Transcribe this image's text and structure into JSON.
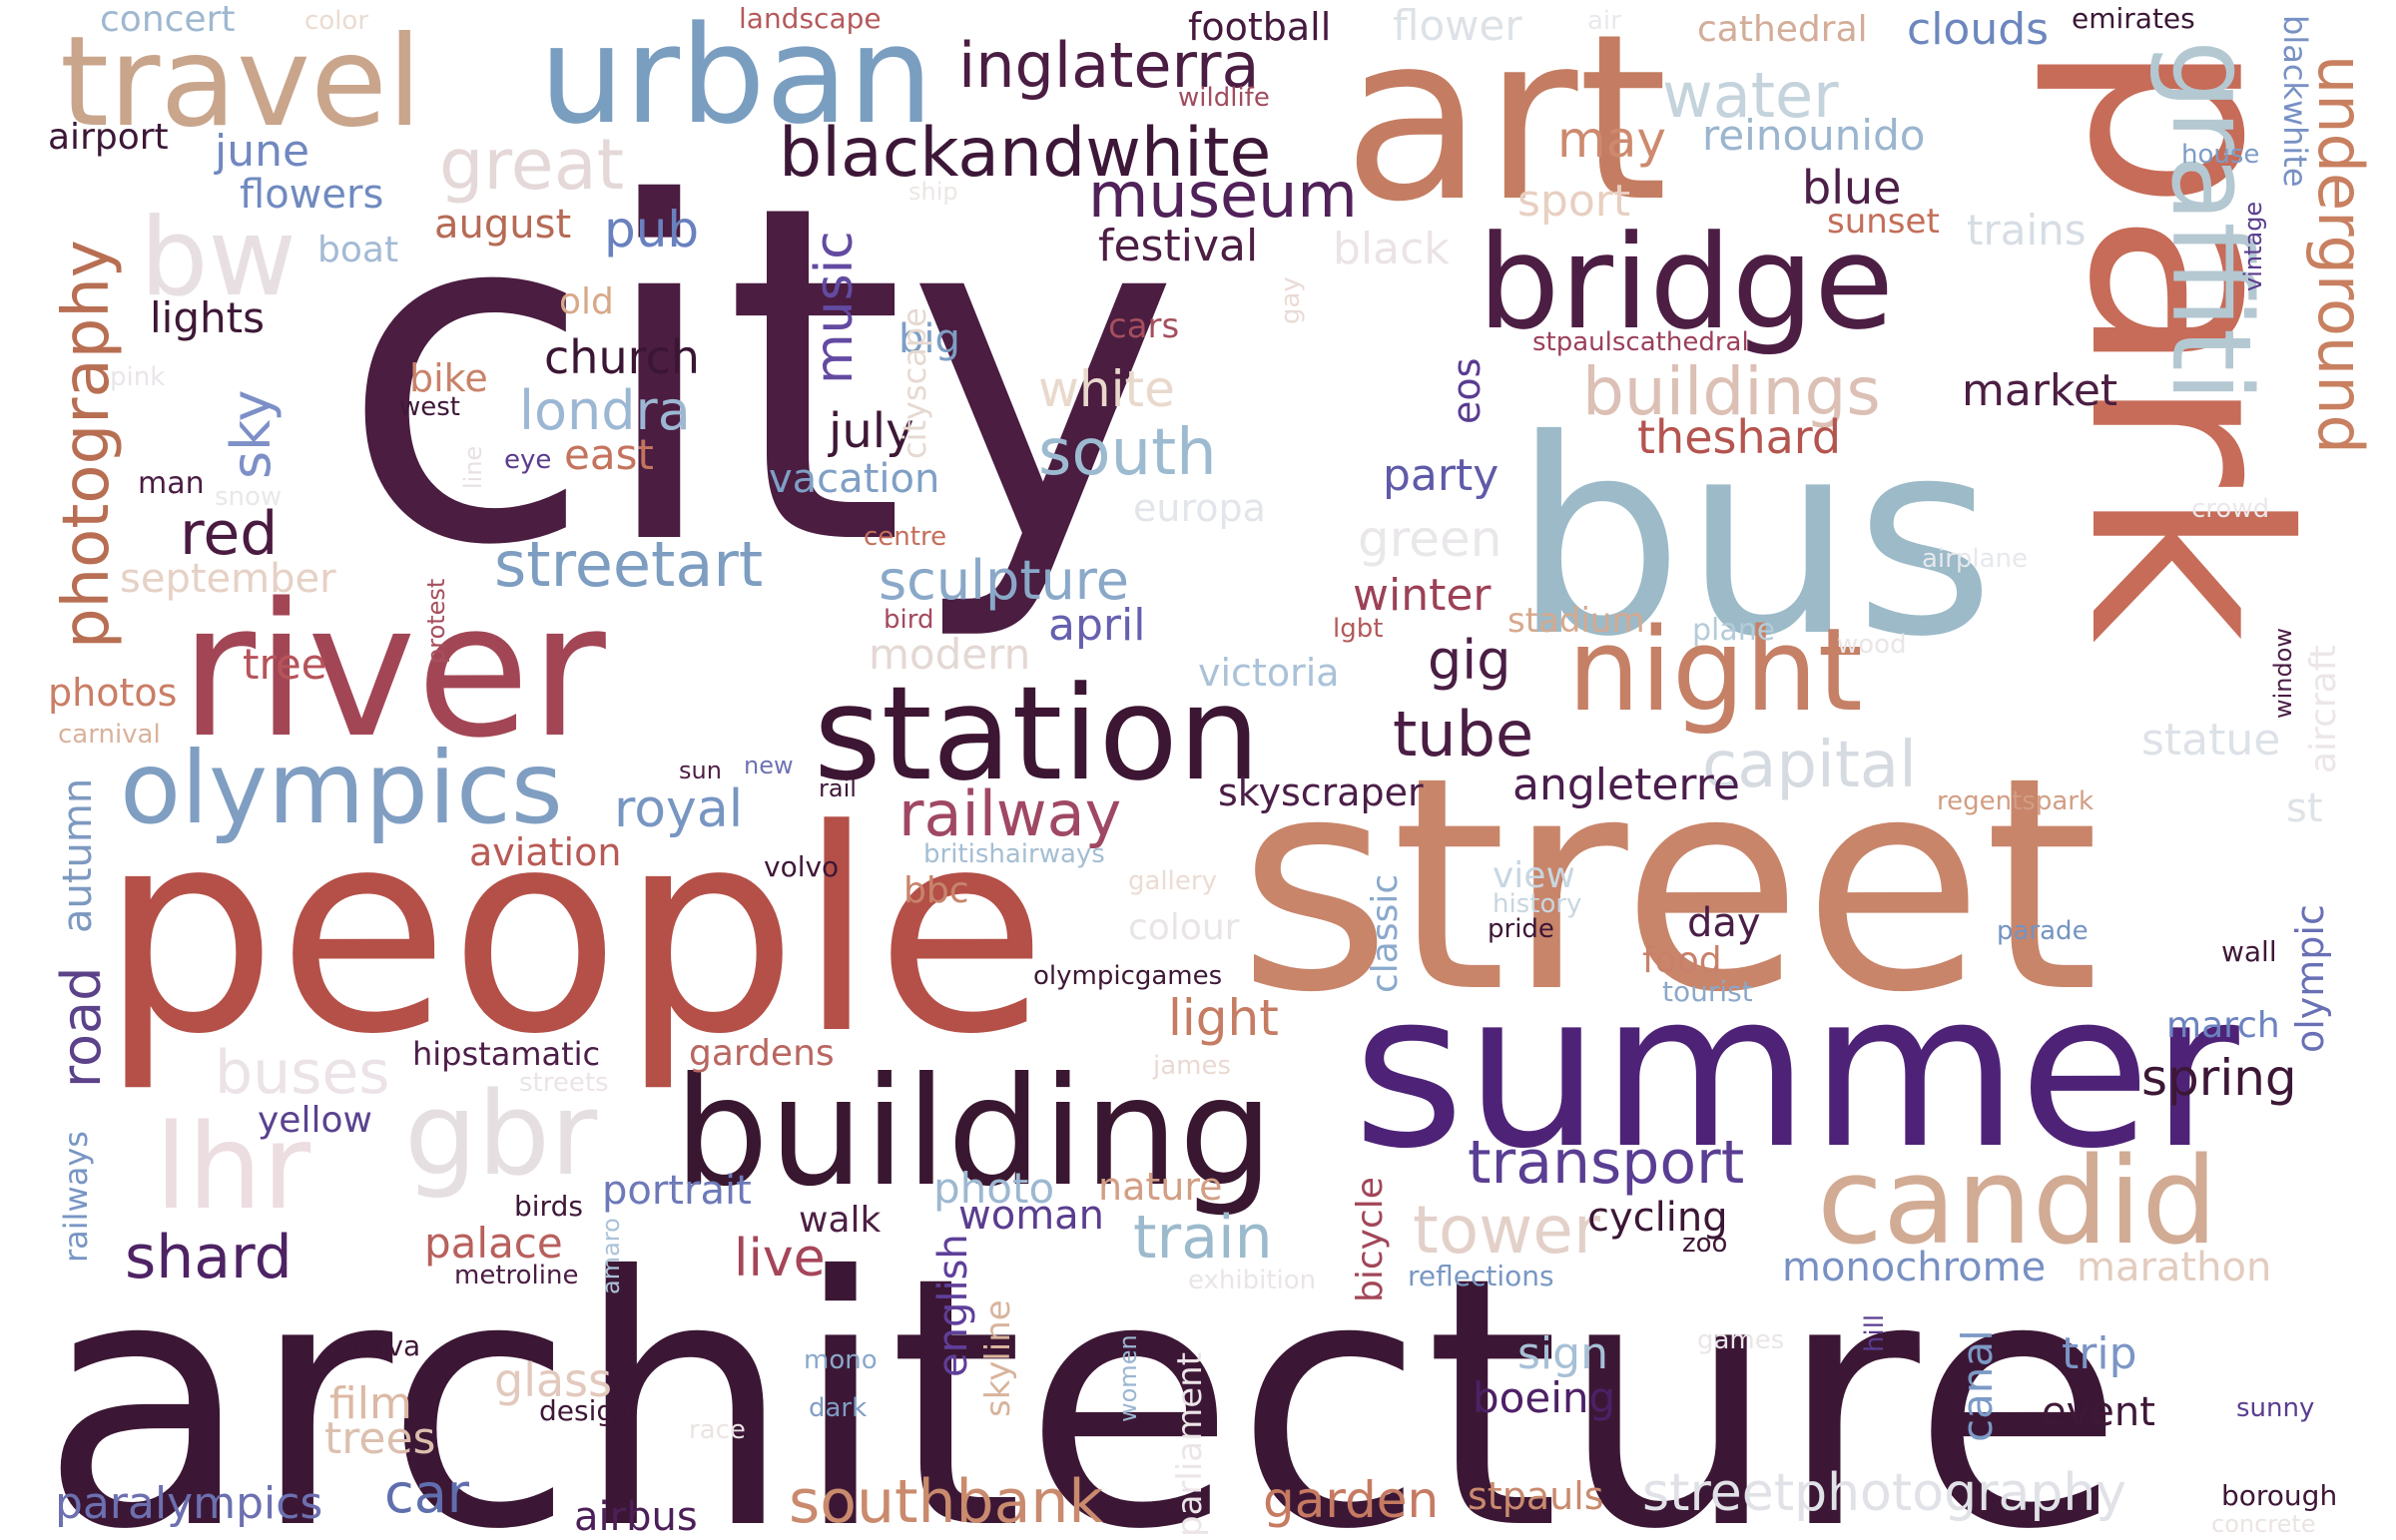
{
  "words": [
    {
      "text": "city",
      "color": "#4a1d41"
    },
    {
      "text": "architecture",
      "color": "#3c1735"
    },
    {
      "text": "people",
      "color": "#b45048"
    },
    {
      "text": "street",
      "color": "#c8856a"
    },
    {
      "text": "art",
      "color": "#c47d62"
    },
    {
      "text": "park",
      "color": "#c66c58"
    },
    {
      "text": "bus",
      "color": "#9cbac8"
    },
    {
      "text": "summer",
      "color": "#4e2377"
    },
    {
      "text": "river",
      "color": "#a24656"
    },
    {
      "text": "building",
      "color": "#3a1730"
    },
    {
      "text": "urban",
      "color": "#7a9ec0"
    },
    {
      "text": "travel",
      "color": "#c9a58c"
    },
    {
      "text": "station",
      "color": "#3d1633"
    },
    {
      "text": "bridge",
      "color": "#4d1e44"
    },
    {
      "text": "night",
      "color": "#c58066"
    },
    {
      "text": "candid",
      "color": "#d2ab94"
    },
    {
      "text": "graffiti",
      "color": "#b4c8d2"
    },
    {
      "text": "olympics",
      "color": "#7f9ec2"
    },
    {
      "text": "gbr",
      "color": "#e6dfe2"
    },
    {
      "text": "lhr",
      "color": "#ecdde1"
    },
    {
      "text": "bw",
      "color": "#e8dfe3"
    },
    {
      "text": "underground",
      "color": "#c88060"
    },
    {
      "text": "photography",
      "color": "#b86e52"
    },
    {
      "text": "blackandwhite",
      "color": "#3d1738"
    },
    {
      "text": "inglaterra",
      "color": "#4b1d43"
    },
    {
      "text": "museum",
      "color": "#51215a"
    },
    {
      "text": "great",
      "color": "#e5d8d8"
    },
    {
      "text": "water",
      "color": "#c4d3dc"
    },
    {
      "text": "buildings",
      "color": "#dcc0b5"
    },
    {
      "text": "railway",
      "color": "#a04863"
    },
    {
      "text": "streetart",
      "color": "#7d9dc1"
    },
    {
      "text": "south",
      "color": "#9cbad0"
    },
    {
      "text": "sculpture",
      "color": "#8aa8c8"
    },
    {
      "text": "tube",
      "color": "#4a1d43"
    },
    {
      "text": "capital",
      "color": "#d6dbe2"
    },
    {
      "text": "tower",
      "color": "#e3d1c9"
    },
    {
      "text": "transport",
      "color": "#5a3e93"
    },
    {
      "text": "train",
      "color": "#9cbacd"
    },
    {
      "text": "shard",
      "color": "#4e2364"
    },
    {
      "text": "southbank",
      "color": "#c98a6d"
    },
    {
      "text": "streetphotography",
      "color": "#e0e2e7"
    },
    {
      "text": "car",
      "color": "#5f6fae"
    },
    {
      "text": "paralympics",
      "color": "#6c70b1"
    },
    {
      "text": "buses",
      "color": "#ebe3e8"
    },
    {
      "text": "road",
      "color": "#5b4289"
    },
    {
      "text": "red",
      "color": "#4a1b40"
    },
    {
      "text": "sky",
      "color": "#7c8fc7"
    },
    {
      "text": "londra",
      "color": "#9cb7d3"
    },
    {
      "text": "music",
      "color": "#634aa1"
    },
    {
      "text": "church",
      "color": "#3b1634"
    },
    {
      "text": "royal",
      "color": "#7796c2"
    },
    {
      "text": "angleterre",
      "color": "#4a1e4d"
    },
    {
      "text": "theshard",
      "color": "#b4544f"
    },
    {
      "text": "market",
      "color": "#4b1e42"
    },
    {
      "text": "statue",
      "color": "#dde2e8"
    },
    {
      "text": "skyscraper",
      "color": "#4a1e47"
    },
    {
      "text": "gig",
      "color": "#4a1e44"
    },
    {
      "text": "winter",
      "color": "#9c4156"
    },
    {
      "text": "green",
      "color": "#eae7ea"
    },
    {
      "text": "party",
      "color": "#5f5aa8"
    },
    {
      "text": "july",
      "color": "#3e1836"
    },
    {
      "text": "white",
      "color": "#e9d9cc"
    },
    {
      "text": "vacation",
      "color": "#7f9fc5"
    },
    {
      "text": "modern",
      "color": "#e4d8d4"
    },
    {
      "text": "april",
      "color": "#6660b0"
    },
    {
      "text": "victoria",
      "color": "#aac2d8"
    },
    {
      "text": "festival",
      "color": "#4d1d43"
    },
    {
      "text": "blue",
      "color": "#4c1f48"
    },
    {
      "text": "may",
      "color": "#cd8a6e"
    },
    {
      "text": "reinounido",
      "color": "#9bb5cf"
    },
    {
      "text": "sport",
      "color": "#e8cfc1"
    },
    {
      "text": "sunset",
      "color": "#c36e59"
    },
    {
      "text": "trains",
      "color": "#d6dde4"
    },
    {
      "text": "black",
      "color": "#ebe3e6"
    },
    {
      "text": "clouds",
      "color": "#6c87bd"
    },
    {
      "text": "cathedral",
      "color": "#d3ad98"
    },
    {
      "text": "flower",
      "color": "#dde2e7"
    },
    {
      "text": "football",
      "color": "#45193e"
    },
    {
      "text": "emirates",
      "color": "#3c1736"
    },
    {
      "text": "air",
      "color": "#e8e9ec"
    },
    {
      "text": "june",
      "color": "#7088c0"
    },
    {
      "text": "flowers",
      "color": "#6f8abf"
    },
    {
      "text": "august",
      "color": "#b66a55"
    },
    {
      "text": "pub",
      "color": "#6981bf"
    },
    {
      "text": "boat",
      "color": "#a3bad4"
    },
    {
      "text": "lights",
      "color": "#3e1836"
    },
    {
      "text": "old",
      "color": "#d8a889"
    },
    {
      "text": "big",
      "color": "#7e9ec4"
    },
    {
      "text": "cityscape",
      "color": "#e6d9d1"
    },
    {
      "text": "cars",
      "color": "#a44f5d"
    },
    {
      "text": "stpaulscathedral",
      "color": "#9b3f5b"
    },
    {
      "text": "eos",
      "color": "#5a3c90"
    },
    {
      "text": "europa",
      "color": "#e2e5ea"
    },
    {
      "text": "stadium",
      "color": "#d6a98e"
    },
    {
      "text": "plane",
      "color": "#b4ccd8"
    },
    {
      "text": "concert",
      "color": "#9fb8d0"
    },
    {
      "text": "color",
      "color": "#eadbd2"
    },
    {
      "text": "landscape",
      "color": "#b6595c"
    },
    {
      "text": "wildlife",
      "color": "#a14c5f"
    },
    {
      "text": "airport",
      "color": "#3c1736"
    },
    {
      "text": "ship",
      "color": "#ede6e5"
    },
    {
      "text": "pink",
      "color": "#ebe5ea"
    },
    {
      "text": "bike",
      "color": "#c8826a"
    },
    {
      "text": "west",
      "color": "#3f1838"
    },
    {
      "text": "line",
      "color": "#e8e1e3"
    },
    {
      "text": "eye",
      "color": "#5a3b8c"
    },
    {
      "text": "east",
      "color": "#c4745e"
    },
    {
      "text": "man",
      "color": "#4a1d44"
    },
    {
      "text": "snow",
      "color": "#eae7ea"
    },
    {
      "text": "centre",
      "color": "#c56e5a"
    },
    {
      "text": "september",
      "color": "#e6d1c6"
    },
    {
      "text": "protest",
      "color": "#a74f5c"
    },
    {
      "text": "bird",
      "color": "#a5495e"
    },
    {
      "text": "lgbt",
      "color": "#b35a5c"
    },
    {
      "text": "tree",
      "color": "#b6545a"
    },
    {
      "text": "photos",
      "color": "#c97e65"
    },
    {
      "text": "carnival",
      "color": "#d8b29c"
    },
    {
      "text": "sun",
      "color": "#4f1e44"
    },
    {
      "text": "new",
      "color": "#6f72b2"
    },
    {
      "text": "rail",
      "color": "#3d1737"
    },
    {
      "text": "autumn",
      "color": "#7d99c0"
    },
    {
      "text": "aviation",
      "color": "#b85a55"
    },
    {
      "text": "volvo",
      "color": "#3e1736"
    },
    {
      "text": "britishairways",
      "color": "#a4bed3"
    },
    {
      "text": "bbc",
      "color": "#c8846b"
    },
    {
      "text": "gallery",
      "color": "#ecdcd3"
    },
    {
      "text": "colour",
      "color": "#e9e4e6"
    },
    {
      "text": "classic",
      "color": "#8aa9cc"
    },
    {
      "text": "view",
      "color": "#c8d6e0"
    },
    {
      "text": "history",
      "color": "#c8d6df"
    },
    {
      "text": "pride",
      "color": "#3d1736"
    },
    {
      "text": "day",
      "color": "#4b1e47"
    },
    {
      "text": "food",
      "color": "#c8806a"
    },
    {
      "text": "tourist",
      "color": "#8ca8ca"
    },
    {
      "text": "parade",
      "color": "#7494c2"
    },
    {
      "text": "wall",
      "color": "#3f1838"
    },
    {
      "text": "olympic",
      "color": "#6970b5"
    },
    {
      "text": "st",
      "color": "#dee3e8"
    },
    {
      "text": "regentspark",
      "color": "#d29d84"
    },
    {
      "text": "aircraft",
      "color": "#ece6e8"
    },
    {
      "text": "window",
      "color": "#4a1d44"
    },
    {
      "text": "wood",
      "color": "#eae6e6"
    },
    {
      "text": "airplane",
      "color": "#e6e8ec"
    },
    {
      "text": "crowd",
      "color": "#ebe8ec"
    },
    {
      "text": "house",
      "color": "#7d9cc6"
    },
    {
      "text": "vintage",
      "color": "#5a3d8e"
    },
    {
      "text": "blackwhite",
      "color": "#7891c4"
    },
    {
      "text": "gay",
      "color": "#e9dbd6"
    },
    {
      "text": "olympicgames",
      "color": "#3e1836"
    },
    {
      "text": "light",
      "color": "#c67b63"
    },
    {
      "text": "hipstamatic",
      "color": "#4d1e48"
    },
    {
      "text": "gardens",
      "color": "#b86660"
    },
    {
      "text": "james",
      "color": "#ead9d2"
    },
    {
      "text": "streets",
      "color": "#ebe4e7"
    },
    {
      "text": "yellow",
      "color": "#5a4290"
    },
    {
      "text": "portrait",
      "color": "#6d79b8"
    },
    {
      "text": "photo",
      "color": "#9cb8d1"
    },
    {
      "text": "nature",
      "color": "#d29e84"
    },
    {
      "text": "woman",
      "color": "#5a3d8f"
    },
    {
      "text": "walk",
      "color": "#4d1f44"
    },
    {
      "text": "birds",
      "color": "#3f1838"
    },
    {
      "text": "palace",
      "color": "#b8605c"
    },
    {
      "text": "live",
      "color": "#a54559"
    },
    {
      "text": "metroline",
      "color": "#4a1c43"
    },
    {
      "text": "amaro",
      "color": "#aac2d8"
    },
    {
      "text": "railways",
      "color": "#7896c4"
    },
    {
      "text": "spring",
      "color": "#3d1736"
    },
    {
      "text": "march",
      "color": "#6b83c0"
    },
    {
      "text": "cycling",
      "color": "#3c1735"
    },
    {
      "text": "zoo",
      "color": "#3e1736"
    },
    {
      "text": "bicycle",
      "color": "#a24658"
    },
    {
      "text": "exhibition",
      "color": "#e9e5e8"
    },
    {
      "text": "reflections",
      "color": "#7897c3"
    },
    {
      "text": "monochrome",
      "color": "#7890c3"
    },
    {
      "text": "marathon",
      "color": "#e3ccbf"
    },
    {
      "text": "english",
      "color": "#5f3f9a"
    },
    {
      "text": "skyline",
      "color": "#d8b49c"
    },
    {
      "text": "parliament",
      "color": "#ece5e8"
    },
    {
      "text": "women",
      "color": "#9bb6d1"
    },
    {
      "text": "arriva",
      "color": "#3e1736"
    },
    {
      "text": "mono",
      "color": "#8aa8cb"
    },
    {
      "text": "dark",
      "color": "#7f9cc4"
    },
    {
      "text": "glass",
      "color": "#e2c9bd"
    },
    {
      "text": "film",
      "color": "#dcb9a4"
    },
    {
      "text": "trees",
      "color": "#dcbfae"
    },
    {
      "text": "design",
      "color": "#3e1736"
    },
    {
      "text": "race",
      "color": "#ebe4e3"
    },
    {
      "text": "sign",
      "color": "#a6c0d6"
    },
    {
      "text": "boeing",
      "color": "#4d2066"
    },
    {
      "text": "canal",
      "color": "#7c9ac6"
    },
    {
      "text": "trip",
      "color": "#7b95c5"
    },
    {
      "text": "event",
      "color": "#3f1838"
    },
    {
      "text": "games",
      "color": "#eae6e8"
    },
    {
      "text": "hill",
      "color": "#5a3c8e"
    },
    {
      "text": "sunny",
      "color": "#5a3d8f"
    },
    {
      "text": "airbus",
      "color": "#4c1f58"
    },
    {
      "text": "garden",
      "color": "#c67a62"
    },
    {
      "text": "stpauls",
      "color": "#c98a6e"
    },
    {
      "text": "borough",
      "color": "#3e1736"
    },
    {
      "text": "concrete",
      "color": "#ebe4e2"
    }
  ]
}
